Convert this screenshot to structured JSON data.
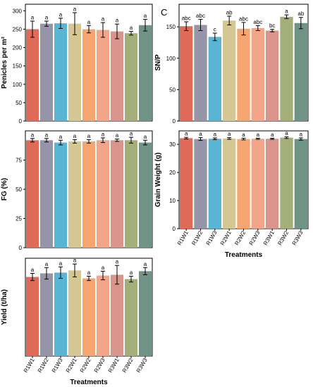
{
  "figure": {
    "panel_letter": "C",
    "colors": [
      "#E06A58",
      "#9695A8",
      "#5AB4D4",
      "#D4C794",
      "#F5A670",
      "#F3A58A",
      "#D9958C",
      "#A3AE79",
      "#6F9485"
    ]
  },
  "chart_data": [
    {
      "type": "bar",
      "panel": "top-left",
      "categories": [
        "R1W1",
        "R1W2",
        "R1W3",
        "R2W1",
        "R2W2",
        "R2W3",
        "R3W1",
        "R3W2",
        "R3W3"
      ],
      "values": [
        250,
        265,
        266,
        265,
        250,
        248,
        244,
        239,
        261
      ],
      "errors": [
        22,
        7,
        14,
        30,
        10,
        20,
        20,
        5,
        16
      ],
      "letters": [
        "a",
        "a",
        "a",
        "a",
        "a",
        "a",
        "a",
        "a",
        "a"
      ],
      "yticks": [
        0,
        50,
        100,
        150,
        200,
        250,
        300
      ],
      "ylim": [
        0,
        318
      ],
      "ylabel": "Penicles per m²",
      "xlabel": "",
      "show_xticklabels": false
    },
    {
      "type": "bar",
      "panel": "middle-left",
      "categories": [
        "R1W1",
        "R1W2",
        "R1W3",
        "R2W1",
        "R2W2",
        "R2W3",
        "R3W1",
        "R3W2",
        "R3W3"
      ],
      "values": [
        92,
        92,
        90,
        91,
        91,
        92,
        92,
        92,
        90
      ],
      "errors": [
        1.5,
        1.5,
        2,
        1.5,
        1.5,
        2,
        1,
        2.5,
        2
      ],
      "letters": [
        "a",
        "a",
        "a",
        "a",
        "a",
        "a",
        "a",
        "a",
        "a"
      ],
      "yticks": [
        0,
        25,
        50,
        75
      ],
      "ylim": [
        0,
        100
      ],
      "ylabel": "FG (%)",
      "xlabel": "",
      "show_xticklabels": false
    },
    {
      "type": "bar",
      "panel": "bottom-left",
      "categories": [
        "R1W1",
        "R1W2",
        "R1W3",
        "R2W1",
        "R2W2",
        "R2W3",
        "R3W1",
        "R3W2",
        "R3W3"
      ],
      "values": [
        11.0,
        11.5,
        11.6,
        11.9,
        10.8,
        11.2,
        11.3,
        10.7,
        11.8
      ],
      "errors": [
        0.5,
        0.8,
        0.8,
        0.9,
        0.3,
        0.6,
        1.3,
        0.4,
        0.5
      ],
      "letters": [
        "a",
        "a",
        "a",
        "a",
        "a",
        "a",
        "a",
        "a",
        "a"
      ],
      "yticks": [],
      "ylim": [
        0,
        13.6
      ],
      "ylabel": "Yield (t/ha)",
      "xlabel": "Treatments",
      "show_xticklabels": true
    },
    {
      "type": "bar",
      "panel": "top-right",
      "categories": [
        "R1W1",
        "R1W2",
        "R1W3",
        "R2W1",
        "R2W2",
        "R2W3",
        "R3W1",
        "R3W2",
        "R3W3"
      ],
      "values": [
        151,
        153,
        134,
        160,
        147,
        148,
        144,
        166,
        156
      ],
      "errors": [
        7,
        9,
        6,
        7,
        10,
        4,
        2,
        3,
        9
      ],
      "letters": [
        "abc",
        "abc",
        "c",
        "ab",
        "abc",
        "abc",
        "bc",
        "a",
        "ab"
      ],
      "yticks": [
        0,
        50,
        100,
        150
      ],
      "ylim": [
        0,
        186
      ],
      "ylabel": "SN/P",
      "xlabel": "",
      "show_xticklabels": false
    },
    {
      "type": "bar",
      "panel": "middle-right",
      "categories": [
        "R1W1",
        "R1W2",
        "R1W3",
        "R2W1",
        "R2W2",
        "R2W3",
        "R3W1",
        "R3W2",
        "R3W3"
      ],
      "values": [
        32.2,
        31.9,
        32.0,
        32.1,
        31.9,
        32.0,
        32.0,
        32.4,
        31.9
      ],
      "errors": [
        0.3,
        0.5,
        0.3,
        0.3,
        0.3,
        0.2,
        0.2,
        0.3,
        0.4
      ],
      "letters": [
        "a",
        "a",
        "a",
        "a",
        "a",
        "a",
        "a",
        "a",
        "a"
      ],
      "yticks": [
        0,
        10,
        20,
        30
      ],
      "ylim": [
        0,
        34.8
      ],
      "ylabel": "Grain Weight (g)",
      "xlabel": "Treatments",
      "show_xticklabels": true
    }
  ]
}
